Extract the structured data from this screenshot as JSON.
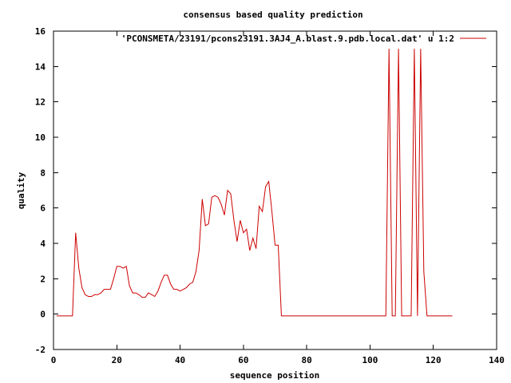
{
  "chart_data": {
    "type": "line",
    "title": "consensus based quality prediction",
    "xlabel": "sequence position",
    "ylabel": "quality",
    "xlim": [
      0,
      140
    ],
    "ylim": [
      -2,
      16
    ],
    "xticks": [
      0,
      20,
      40,
      60,
      80,
      100,
      120,
      140
    ],
    "yticks": [
      -2,
      0,
      2,
      4,
      6,
      8,
      10,
      12,
      14,
      16
    ],
    "grid": false,
    "legend_position": "top-right",
    "series": [
      {
        "name": "'PCONSMETA/23191/pcons23191.3AJ4_A.blast.9.pdb.local.dat' u 1:2",
        "color": "#cc0000",
        "x": [
          1,
          2,
          3,
          4,
          5,
          6,
          7,
          8,
          9,
          10,
          11,
          12,
          13,
          14,
          15,
          16,
          17,
          18,
          19,
          20,
          21,
          22,
          23,
          24,
          25,
          26,
          27,
          28,
          29,
          30,
          31,
          32,
          33,
          34,
          35,
          36,
          37,
          38,
          39,
          40,
          41,
          42,
          43,
          44,
          45,
          46,
          47,
          48,
          49,
          50,
          51,
          52,
          53,
          54,
          55,
          56,
          57,
          58,
          59,
          60,
          61,
          62,
          63,
          64,
          65,
          66,
          67,
          68,
          69,
          70,
          71,
          72,
          73,
          74,
          75,
          76,
          77,
          78,
          79,
          80,
          81,
          82,
          83,
          84,
          85,
          86,
          87,
          88,
          89,
          90,
          91,
          92,
          93,
          94,
          95,
          96,
          97,
          98,
          99,
          100,
          101,
          102,
          103,
          104,
          105,
          106,
          107,
          108,
          109,
          110,
          111,
          112,
          113,
          114,
          115,
          116,
          117,
          118,
          119,
          120,
          121,
          122,
          123,
          124,
          125,
          126
        ],
        "y": [
          -0.1,
          -0.1,
          -0.1,
          -0.1,
          -0.1,
          -0.1,
          4.6,
          2.6,
          1.5,
          1.1,
          1.0,
          1.0,
          1.1,
          1.1,
          1.2,
          1.4,
          1.4,
          1.4,
          2.0,
          2.7,
          2.7,
          2.6,
          2.7,
          1.6,
          1.2,
          1.2,
          1.1,
          0.95,
          0.95,
          1.2,
          1.1,
          1.0,
          1.3,
          1.8,
          2.2,
          2.2,
          1.7,
          1.4,
          1.4,
          1.3,
          1.4,
          1.5,
          1.7,
          1.8,
          2.4,
          3.6,
          6.5,
          5.0,
          5.1,
          6.6,
          6.7,
          6.6,
          6.2,
          5.6,
          7.0,
          6.8,
          5.3,
          4.1,
          5.3,
          4.6,
          4.8,
          3.6,
          4.3,
          3.7,
          6.1,
          5.8,
          7.2,
          7.5,
          5.8,
          3.9,
          3.9,
          -0.1,
          -0.1,
          -0.1,
          -0.1,
          -0.1,
          -0.1,
          -0.1,
          -0.1,
          -0.1,
          -0.1,
          -0.1,
          -0.1,
          -0.1,
          -0.1,
          -0.1,
          -0.1,
          -0.1,
          -0.1,
          -0.1,
          -0.1,
          -0.1,
          -0.1,
          -0.1,
          -0.1,
          -0.1,
          -0.1,
          -0.1,
          -0.1,
          -0.1,
          -0.1,
          -0.1,
          -0.1,
          -0.1,
          -0.1,
          15.0,
          -0.1,
          -0.1,
          15.0,
          -0.1,
          -0.1,
          -0.1,
          -0.1,
          15.0,
          -0.1,
          15.0,
          2.4,
          -0.1,
          -0.1,
          -0.1,
          -0.1,
          -0.1,
          -0.1,
          -0.1,
          -0.1,
          -0.1
        ]
      }
    ]
  }
}
